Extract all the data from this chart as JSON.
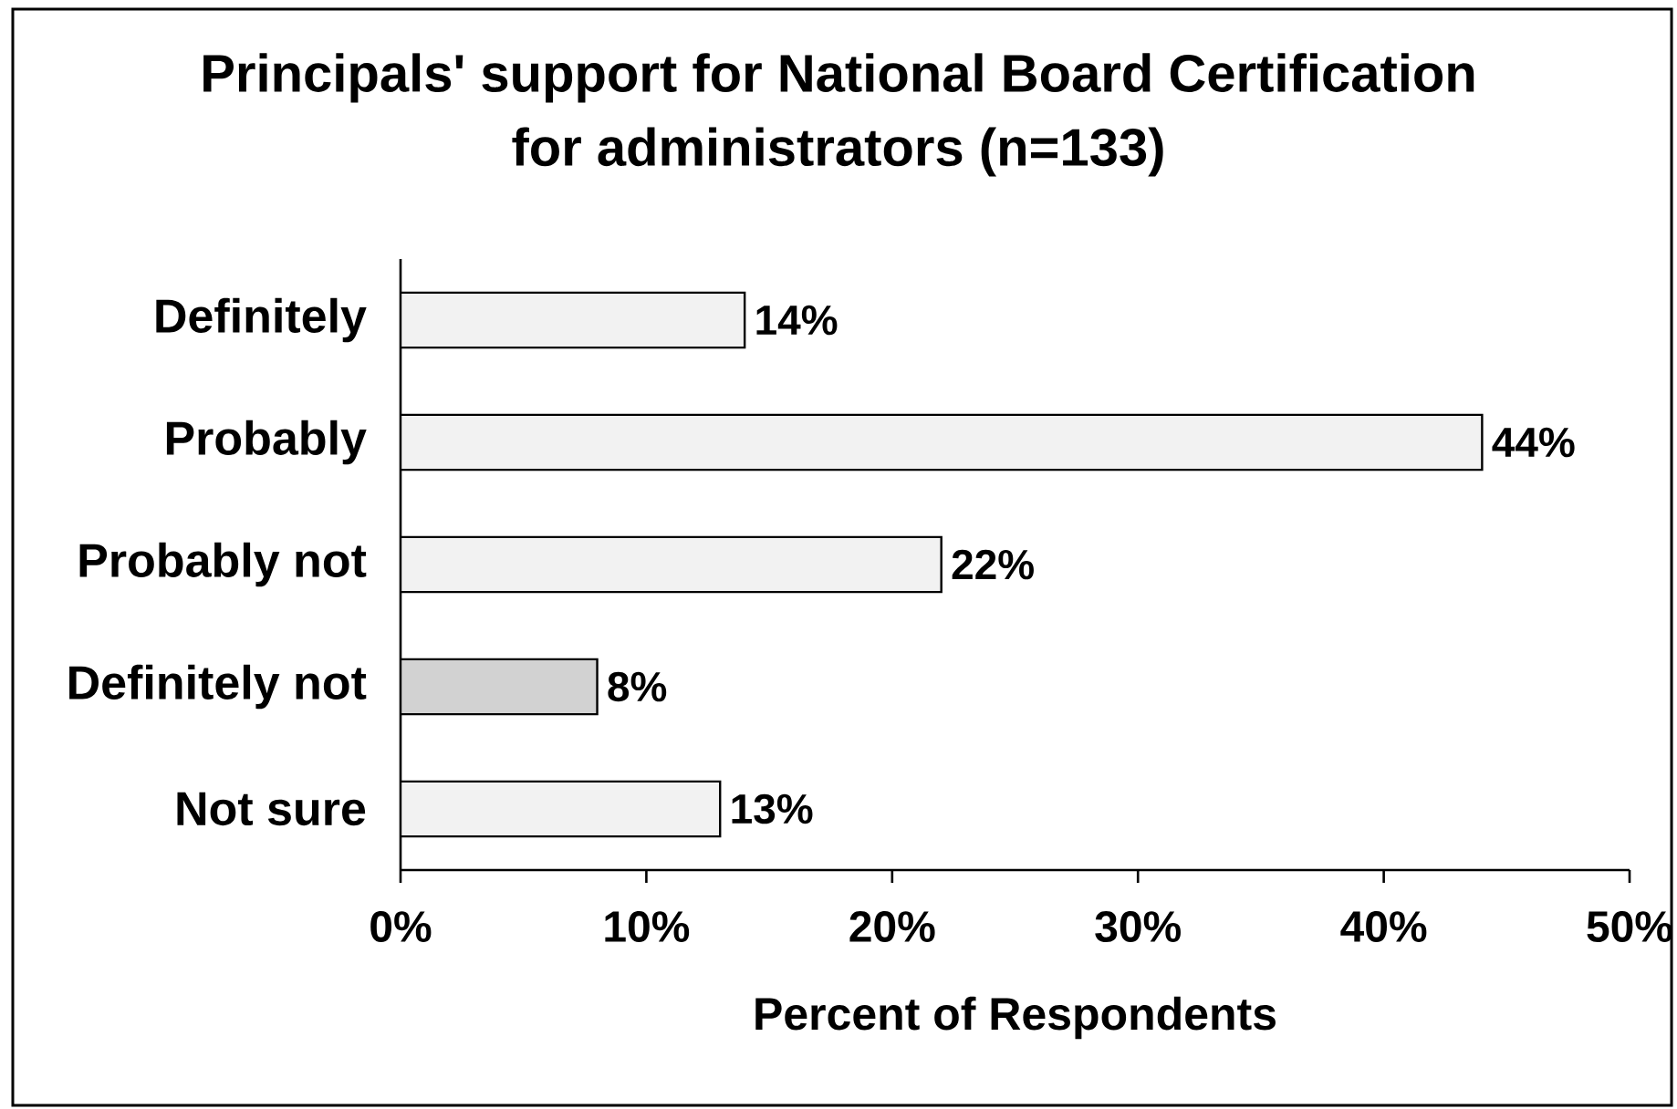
{
  "chart_data": {
    "type": "bar",
    "orientation": "horizontal",
    "title": "Principals' support for National Board Certification for administrators (n=133)",
    "xlabel": "Percent of Respondents",
    "categories": [
      "Definitely",
      "Probably",
      "Probably not",
      "Definitely not",
      "Not sure"
    ],
    "values": [
      14,
      44,
      22,
      8,
      13
    ],
    "colors": [
      "#f2f2f2",
      "#f2f2f2",
      "#f2f2f2",
      "#d2d2d2",
      "#f2f2f2"
    ],
    "value_labels": [
      "14%",
      "44%",
      "22%",
      "8%",
      "13%"
    ],
    "xlim": [
      0,
      50
    ],
    "xticks": [
      {
        "value": 0,
        "label": "0%"
      },
      {
        "value": 10,
        "label": "10%"
      },
      {
        "value": 20,
        "label": "20%"
      },
      {
        "value": 30,
        "label": "30%"
      },
      {
        "value": 40,
        "label": "40%"
      },
      {
        "value": 50,
        "label": "50%"
      }
    ]
  }
}
